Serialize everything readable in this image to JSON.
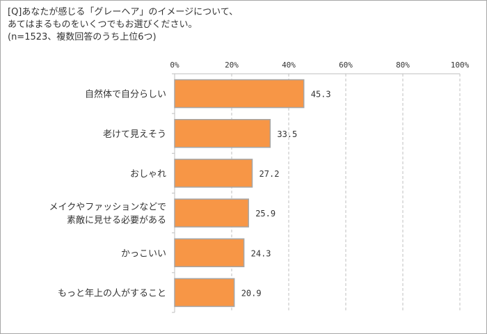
{
  "chart_data": {
    "type": "bar",
    "orientation": "horizontal",
    "title_lines": [
      "[Q]あなたが感じる「グレーヘア」のイメージについて、",
      "あてはまるものをいくつでもお選びください。",
      "(n=1523、複数回答のうち上位6つ)"
    ],
    "categories": [
      [
        "自然体で自分らしい"
      ],
      [
        "老けて見えそう"
      ],
      [
        "おしゃれ"
      ],
      [
        "メイクやファッションなどで",
        "素敵に見せる必要がある"
      ],
      [
        "かっこいい"
      ],
      [
        "もっと年上の人がすること"
      ]
    ],
    "values": [
      45.3,
      33.5,
      27.2,
      25.9,
      24.3,
      20.9
    ],
    "xlim": [
      0,
      100
    ],
    "xticks": [
      0,
      20,
      40,
      60,
      80,
      100
    ],
    "xtick_labels": [
      "0%",
      "20%",
      "40%",
      "60%",
      "80%",
      "100%"
    ],
    "xlabel": "",
    "ylabel": "",
    "grid": true,
    "bar_color": "#F79646",
    "bar_border": "#A6A6A6"
  }
}
